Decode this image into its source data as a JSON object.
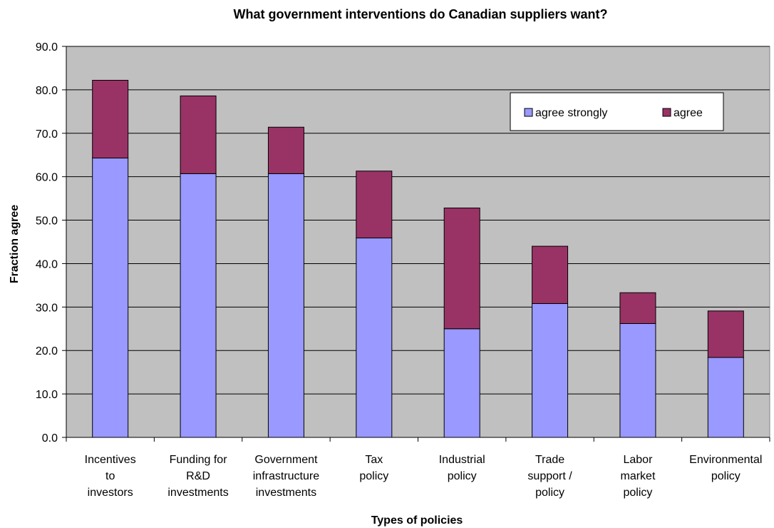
{
  "chart_data": {
    "type": "bar",
    "stacked": true,
    "title": "What government interventions do Canadian suppliers want?",
    "xlabel": "Types of policies",
    "ylabel": "Fraction agree",
    "ylim": [
      0,
      90
    ],
    "yticks": [
      "0.0",
      "10.0",
      "20.0",
      "30.0",
      "40.0",
      "50.0",
      "60.0",
      "70.0",
      "80.0",
      "90.0"
    ],
    "grid": true,
    "legend_position": "top-right",
    "categories": [
      [
        "Incentives",
        "to",
        "investors"
      ],
      [
        "Funding for",
        "R&D",
        "investments"
      ],
      [
        "Government",
        "infrastructure",
        "investments"
      ],
      [
        "Tax",
        "policy"
      ],
      [
        "Industrial",
        "policy"
      ],
      [
        "Trade",
        "support /",
        "policy"
      ],
      [
        "Labor",
        "market",
        "policy"
      ],
      [
        "Environmental",
        "policy"
      ]
    ],
    "series": [
      {
        "name": "agree strongly",
        "color": "#9999ff",
        "values": [
          64.3,
          60.7,
          60.7,
          45.9,
          25.0,
          30.8,
          26.2,
          18.4
        ]
      },
      {
        "name": "agree",
        "color": "#993366",
        "values": [
          17.9,
          17.9,
          10.7,
          15.4,
          27.8,
          13.2,
          7.1,
          10.7
        ]
      }
    ],
    "plot_background": "#c0c0c0"
  }
}
